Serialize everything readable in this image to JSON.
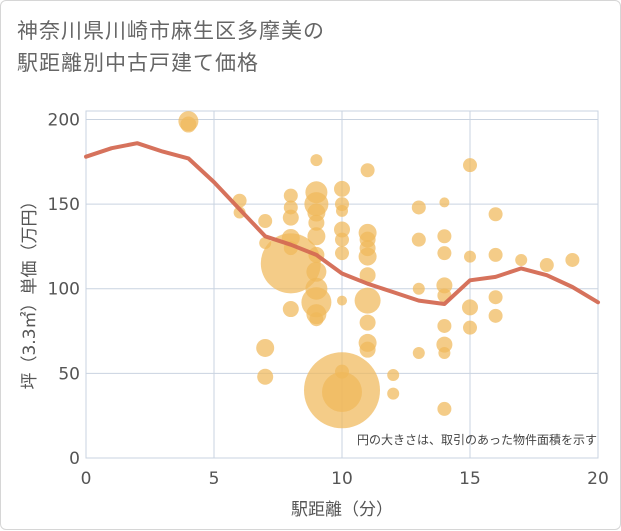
{
  "title_line1": "神奈川県川崎市麻生区多摩美の",
  "title_line2": "駅距離別中古戸建て価格",
  "chart_data": {
    "type": "scatter",
    "title": "神奈川県川崎市麻生区多摩美の駅距離別中古戸建て価格",
    "xlabel": "駅距離（分）",
    "ylabel": "坪（3.3㎡）単価（万円）",
    "xlim": [
      0,
      20
    ],
    "ylim": [
      0,
      205
    ],
    "xticks": [
      0,
      5,
      10,
      15,
      20
    ],
    "yticks": [
      0,
      50,
      100,
      150,
      200
    ],
    "grid": true,
    "annotation": "円の大きさは、取引のあった物件面積を示す",
    "colors": {
      "bubble": "#f0b95a",
      "trend": "#d46a53",
      "grid": "#c9d3e0"
    },
    "bubbles": [
      {
        "x": 4,
        "y": 199,
        "r": 10
      },
      {
        "x": 4,
        "y": 197,
        "r": 8
      },
      {
        "x": 6,
        "y": 152,
        "r": 7
      },
      {
        "x": 6,
        "y": 145,
        "r": 6
      },
      {
        "x": 7,
        "y": 140,
        "r": 7
      },
      {
        "x": 7,
        "y": 127,
        "r": 6
      },
      {
        "x": 7,
        "y": 65,
        "r": 9
      },
      {
        "x": 7,
        "y": 48,
        "r": 8
      },
      {
        "x": 8,
        "y": 155,
        "r": 7
      },
      {
        "x": 8,
        "y": 148,
        "r": 7
      },
      {
        "x": 8,
        "y": 142,
        "r": 8
      },
      {
        "x": 8,
        "y": 130,
        "r": 9
      },
      {
        "x": 8,
        "y": 124,
        "r": 7
      },
      {
        "x": 8,
        "y": 115,
        "r": 30
      },
      {
        "x": 8,
        "y": 88,
        "r": 8
      },
      {
        "x": 9,
        "y": 176,
        "r": 6
      },
      {
        "x": 9,
        "y": 157,
        "r": 11
      },
      {
        "x": 9,
        "y": 150,
        "r": 12
      },
      {
        "x": 9,
        "y": 145,
        "r": 9
      },
      {
        "x": 9,
        "y": 139,
        "r": 8
      },
      {
        "x": 9,
        "y": 131,
        "r": 9
      },
      {
        "x": 9,
        "y": 120,
        "r": 8
      },
      {
        "x": 9,
        "y": 110,
        "r": 10
      },
      {
        "x": 9,
        "y": 100,
        "r": 11
      },
      {
        "x": 9,
        "y": 92,
        "r": 15
      },
      {
        "x": 9,
        "y": 85,
        "r": 10
      },
      {
        "x": 9,
        "y": 82,
        "r": 7
      },
      {
        "x": 10,
        "y": 159,
        "r": 8
      },
      {
        "x": 10,
        "y": 150,
        "r": 7
      },
      {
        "x": 10,
        "y": 146,
        "r": 6
      },
      {
        "x": 10,
        "y": 135,
        "r": 8
      },
      {
        "x": 10,
        "y": 129,
        "r": 7
      },
      {
        "x": 10,
        "y": 121,
        "r": 7
      },
      {
        "x": 10,
        "y": 93,
        "r": 5
      },
      {
        "x": 10,
        "y": 51,
        "r": 7
      },
      {
        "x": 10,
        "y": 40,
        "r": 38
      },
      {
        "x": 10,
        "y": 39,
        "r": 20
      },
      {
        "x": 11,
        "y": 170,
        "r": 7
      },
      {
        "x": 11,
        "y": 133,
        "r": 9
      },
      {
        "x": 11,
        "y": 129,
        "r": 8
      },
      {
        "x": 11,
        "y": 124,
        "r": 8
      },
      {
        "x": 11,
        "y": 119,
        "r": 9
      },
      {
        "x": 11,
        "y": 108,
        "r": 8
      },
      {
        "x": 11,
        "y": 93,
        "r": 13
      },
      {
        "x": 11,
        "y": 80,
        "r": 8
      },
      {
        "x": 11,
        "y": 68,
        "r": 9
      },
      {
        "x": 11,
        "y": 64,
        "r": 8
      },
      {
        "x": 12,
        "y": 49,
        "r": 6
      },
      {
        "x": 12,
        "y": 38,
        "r": 6
      },
      {
        "x": 13,
        "y": 148,
        "r": 7
      },
      {
        "x": 13,
        "y": 129,
        "r": 7
      },
      {
        "x": 13,
        "y": 100,
        "r": 6
      },
      {
        "x": 13,
        "y": 62,
        "r": 6
      },
      {
        "x": 14,
        "y": 151,
        "r": 5
      },
      {
        "x": 14,
        "y": 131,
        "r": 7
      },
      {
        "x": 14,
        "y": 121,
        "r": 7
      },
      {
        "x": 14,
        "y": 102,
        "r": 8
      },
      {
        "x": 14,
        "y": 96,
        "r": 7
      },
      {
        "x": 14,
        "y": 78,
        "r": 7
      },
      {
        "x": 14,
        "y": 67,
        "r": 8
      },
      {
        "x": 14,
        "y": 62,
        "r": 6
      },
      {
        "x": 14,
        "y": 29,
        "r": 7
      },
      {
        "x": 15,
        "y": 173,
        "r": 7
      },
      {
        "x": 15,
        "y": 119,
        "r": 6
      },
      {
        "x": 15,
        "y": 89,
        "r": 8
      },
      {
        "x": 15,
        "y": 77,
        "r": 7
      },
      {
        "x": 16,
        "y": 144,
        "r": 7
      },
      {
        "x": 16,
        "y": 120,
        "r": 7
      },
      {
        "x": 16,
        "y": 95,
        "r": 7
      },
      {
        "x": 16,
        "y": 84,
        "r": 7
      },
      {
        "x": 17,
        "y": 117,
        "r": 6
      },
      {
        "x": 18,
        "y": 114,
        "r": 7
      },
      {
        "x": 19,
        "y": 117,
        "r": 7
      }
    ],
    "trend": {
      "x": [
        0,
        1,
        2,
        3,
        4,
        5,
        6,
        7,
        8,
        9,
        10,
        11,
        12,
        13,
        14,
        15,
        16,
        17,
        18,
        19,
        20
      ],
      "y": [
        178,
        183,
        186,
        181,
        177,
        163,
        147,
        131,
        126,
        120,
        109,
        103,
        98,
        93,
        91,
        105,
        107,
        112,
        108,
        101,
        92
      ]
    }
  }
}
